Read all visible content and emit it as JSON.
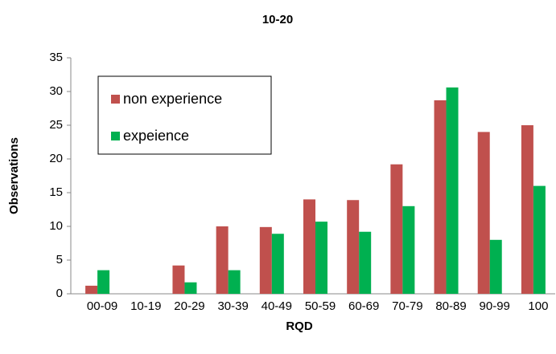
{
  "chart_data": {
    "type": "bar",
    "title": "10-20",
    "x_label": "RQD",
    "y_label": "Observations",
    "categories": [
      "00-09",
      "10-19",
      "20-29",
      "30-39",
      "40-49",
      "50-59",
      "60-69",
      "70-79",
      "80-89",
      "90-99",
      "100"
    ],
    "series": [
      {
        "name": "non experience",
        "color": "#c0504d",
        "values": [
          1.2,
          0,
          4.2,
          10,
          9.9,
          14,
          13.9,
          19.2,
          28.7,
          24,
          25
        ]
      },
      {
        "name": "expeience",
        "color": "#00b050",
        "values": [
          3.5,
          0,
          1.7,
          3.5,
          8.9,
          10.7,
          9.2,
          13,
          30.6,
          8,
          16
        ]
      }
    ],
    "ylim": [
      0,
      35
    ],
    "yticks": [
      0,
      5,
      10,
      15,
      20,
      25,
      30,
      35
    ],
    "grid": false,
    "legend": "upper-left"
  }
}
